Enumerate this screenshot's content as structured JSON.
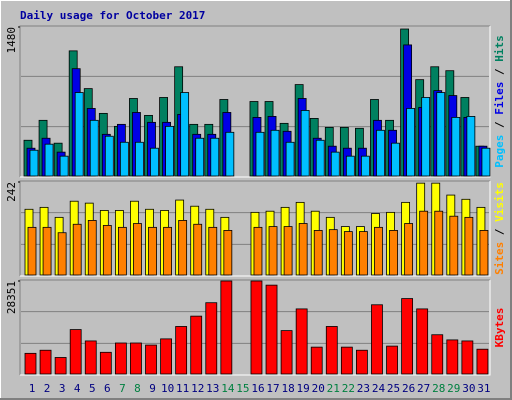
{
  "chart_data": [
    {
      "type": "bar",
      "title": "Daily usage for October 2017",
      "categories": [
        "1",
        "2",
        "3",
        "4",
        "5",
        "6",
        "7",
        "8",
        "9",
        "10",
        "11",
        "12",
        "13",
        "14",
        "15",
        "16",
        "17",
        "18",
        "19",
        "20",
        "21",
        "22",
        "23",
        "24",
        "25",
        "26",
        "27",
        "28",
        "29",
        "30",
        "31"
      ],
      "category_colors": [
        "#000080",
        "#000080",
        "#000080",
        "#000080",
        "#000080",
        "#000080",
        "#008040",
        "#008040",
        "#000080",
        "#000080",
        "#000080",
        "#000080",
        "#000080",
        "#008040",
        "#008040",
        "#000080",
        "#000080",
        "#000080",
        "#000080",
        "#000080",
        "#008040",
        "#008040",
        "#000080",
        "#000080",
        "#000080",
        "#000080",
        "#000080",
        "#008040",
        "#008040",
        "#000080",
        "#000080"
      ],
      "legend_separator": " / ",
      "series": [
        {
          "name": "Hits",
          "color": "#008060",
          "values": [
            355,
            553,
            326,
            1243,
            868,
            622,
            493,
            770,
            602,
            780,
            1085,
            513,
            513,
            760,
            0,
            740,
            740,
            523,
            908,
            572,
            483,
            483,
            474,
            760,
            553,
            1460,
            957,
            1085,
            1046,
            780,
            296
          ]
        },
        {
          "name": "Files",
          "color": "#0000e6",
          "values": [
            276,
            375,
            237,
            1066,
            671,
            414,
            513,
            631,
            533,
            533,
            612,
            414,
            414,
            631,
            0,
            582,
            592,
            444,
            770,
            375,
            296,
            276,
            276,
            553,
            454,
            1302,
            681,
            848,
            799,
            582,
            296
          ]
        },
        {
          "name": "Pages",
          "color": "#00c0ff",
          "values": [
            256,
            316,
            197,
            829,
            553,
            395,
            335,
            335,
            276,
            493,
            829,
            375,
            375,
            434,
            0,
            434,
            454,
            335,
            651,
            355,
            237,
            197,
            197,
            454,
            326,
            671,
            780,
            829,
            582,
            592,
            276
          ]
        }
      ],
      "ylim": [
        0,
        1480
      ],
      "yticks": [
        1480
      ]
    },
    {
      "type": "bar",
      "series": [
        {
          "name": "Visits",
          "color": "#ffff00",
          "values": [
            171,
            176,
            150,
            192,
            187,
            168,
            168,
            192,
            171,
            168,
            195,
            179,
            171,
            150,
            0,
            163,
            166,
            176,
            189,
            166,
            150,
            126,
            126,
            160,
            163,
            189,
            239,
            239,
            208,
            197,
            176
          ]
        },
        {
          "name": "Sites",
          "color": "#ff8000",
          "values": [
            124,
            124,
            110,
            132,
            142,
            129,
            124,
            134,
            124,
            124,
            142,
            132,
            124,
            116,
            0,
            124,
            126,
            126,
            134,
            116,
            118,
            113,
            113,
            124,
            116,
            134,
            166,
            166,
            153,
            150,
            116
          ]
        }
      ],
      "ylim": [
        0,
        242
      ],
      "yticks": [
        242
      ]
    },
    {
      "type": "bar",
      "series": [
        {
          "name": "KBytes",
          "color": "#ff0000",
          "values": [
            6300,
            7245,
            5040,
            13545,
            10080,
            6615,
            9450,
            9450,
            8820,
            10710,
            14490,
            17640,
            21735,
            28351,
            0,
            28351,
            27090,
            13230,
            19845,
            8190,
            14490,
            8190,
            7245,
            21105,
            8505,
            23000,
            19845,
            11970,
            10395,
            10080,
            7560
          ]
        }
      ],
      "ylim": [
        0,
        28351
      ],
      "yticks": [
        28351
      ]
    }
  ]
}
